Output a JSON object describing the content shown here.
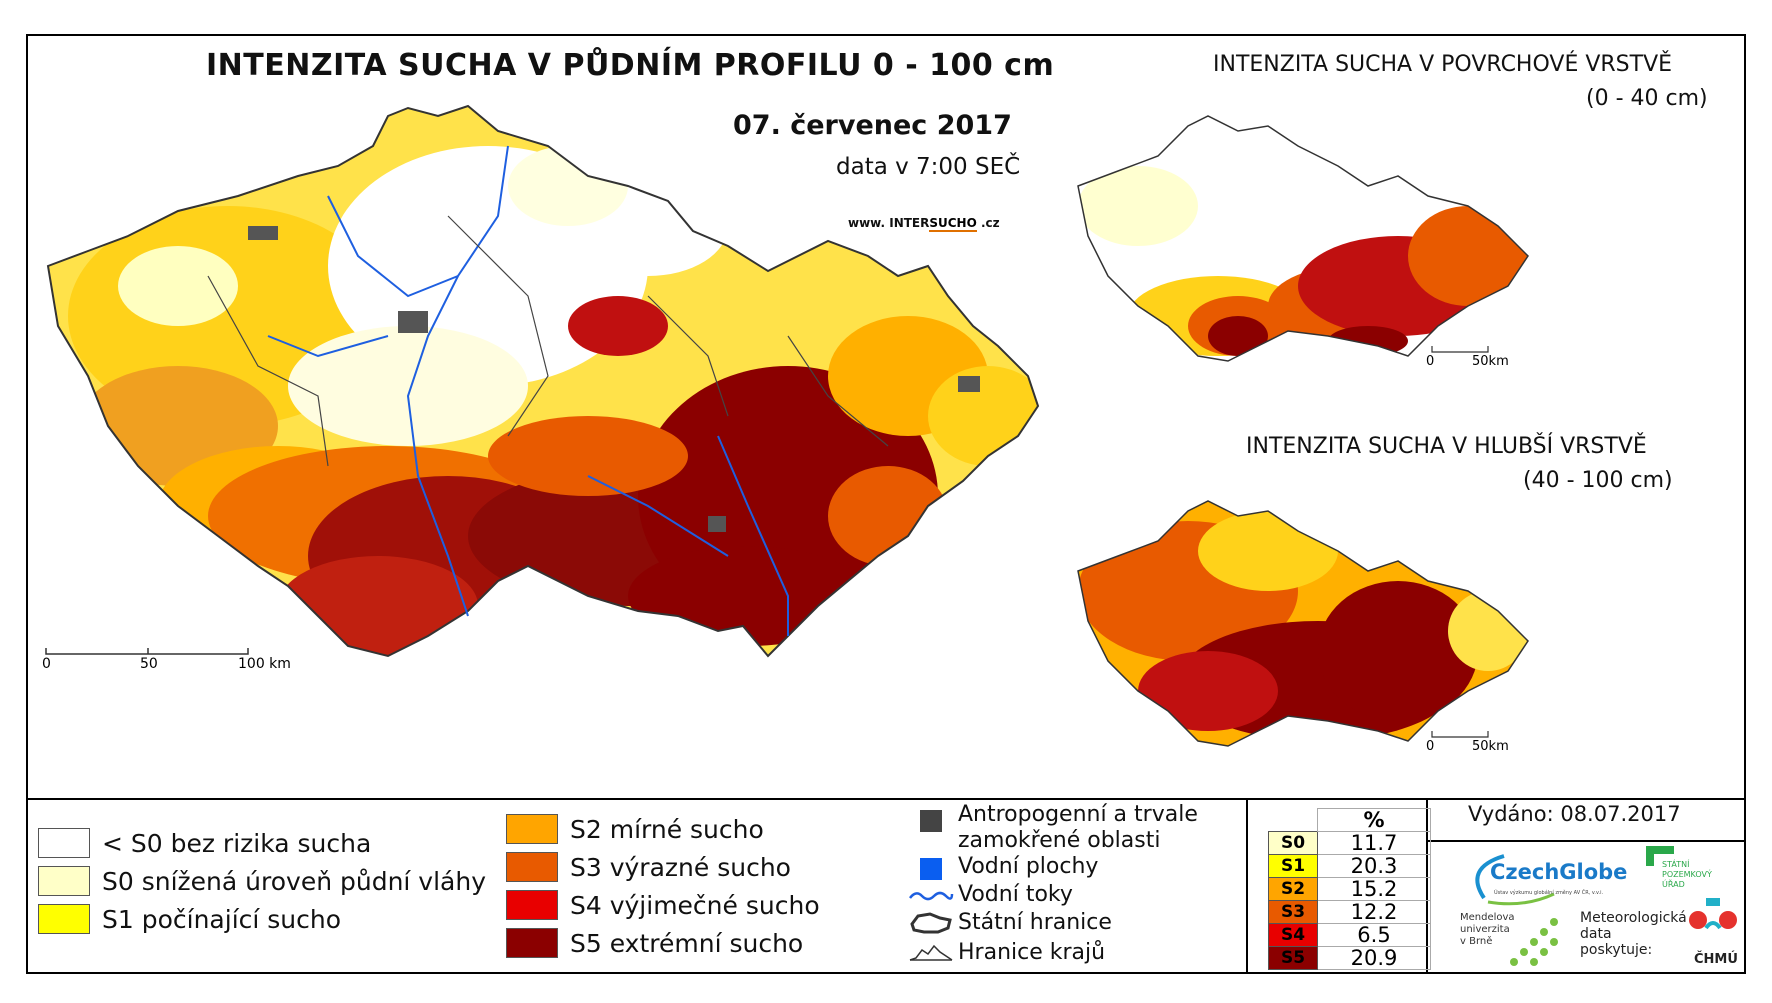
{
  "main": {
    "title": "INTENZITA SUCHA V PŮDNÍM PROFILU 0 - 100 cm",
    "date": "07. červenec 2017",
    "time": "data v 7:00 SEČ",
    "web_prefix": "www. INTER",
    "web_hl": "SUCHO",
    "web_suffix": " .cz",
    "scale": [
      "0",
      "50",
      "100 km"
    ]
  },
  "inset_top": {
    "title": "INTENZITA SUCHA V POVRCHOVÉ VRSTVĚ",
    "range": "(0 - 40 cm)",
    "scale": [
      "0",
      "50km"
    ]
  },
  "inset_bottom": {
    "title": "INTENZITA SUCHA V HLUBŠÍ VRSTVĚ",
    "range": "(40 - 100 cm)",
    "scale": [
      "0",
      "50km"
    ]
  },
  "legend": {
    "classes": [
      {
        "label": "< S0 bez rizika sucha",
        "color": "#ffffff"
      },
      {
        "label": "S0 snížená úroveň půdní vláhy",
        "color": "#ffffc8"
      },
      {
        "label": "S1 počínající sucho",
        "color": "#ffff00"
      },
      {
        "label": "S2 mírné sucho",
        "color": "#ffa500"
      },
      {
        "label": "S3 výrazné sucho",
        "color": "#e85a00"
      },
      {
        "label": "S4 výjimečné sucho",
        "color": "#e80000"
      },
      {
        "label": "S5 extrémní sucho",
        "color": "#8b0000"
      }
    ],
    "anthropogenic": "Antropogenní a trvale",
    "anthropogenic2": "zamokřené oblasti",
    "water_bodies": "Vodní plochy",
    "rivers": "Vodní toky",
    "state_border": "Státní hranice",
    "region_border": "Hranice krajů"
  },
  "stats": {
    "header": "%",
    "rows": [
      {
        "cls": "S0",
        "value": "11.7",
        "color": "#ffffc8"
      },
      {
        "cls": "S1",
        "value": "20.3",
        "color": "#ffff00"
      },
      {
        "cls": "S2",
        "value": "15.2",
        "color": "#ffa500"
      },
      {
        "cls": "S3",
        "value": "12.2",
        "color": "#e85a00"
      },
      {
        "cls": "S4",
        "value": "6.5",
        "color": "#e80000"
      },
      {
        "cls": "S5",
        "value": "20.9",
        "color": "#8b0000"
      }
    ]
  },
  "issued": "Vydáno: 08.07.2017",
  "logos": {
    "czechglobe": "CzechGlobe",
    "czechglobe_sub": "Ústav výzkumu globální změny AV ČR, v.v.i.",
    "spu1": "STÁTNÍ",
    "spu2": "POZEMKOVÝ",
    "spu3": "ÚŘAD",
    "mendel1": "Mendelova",
    "mendel2": "univerzita",
    "mendel3": "v Brně",
    "meteo1": "Meteorologická",
    "meteo2": "data",
    "meteo3": "poskytuje:",
    "chmu": "ČHMÚ"
  }
}
